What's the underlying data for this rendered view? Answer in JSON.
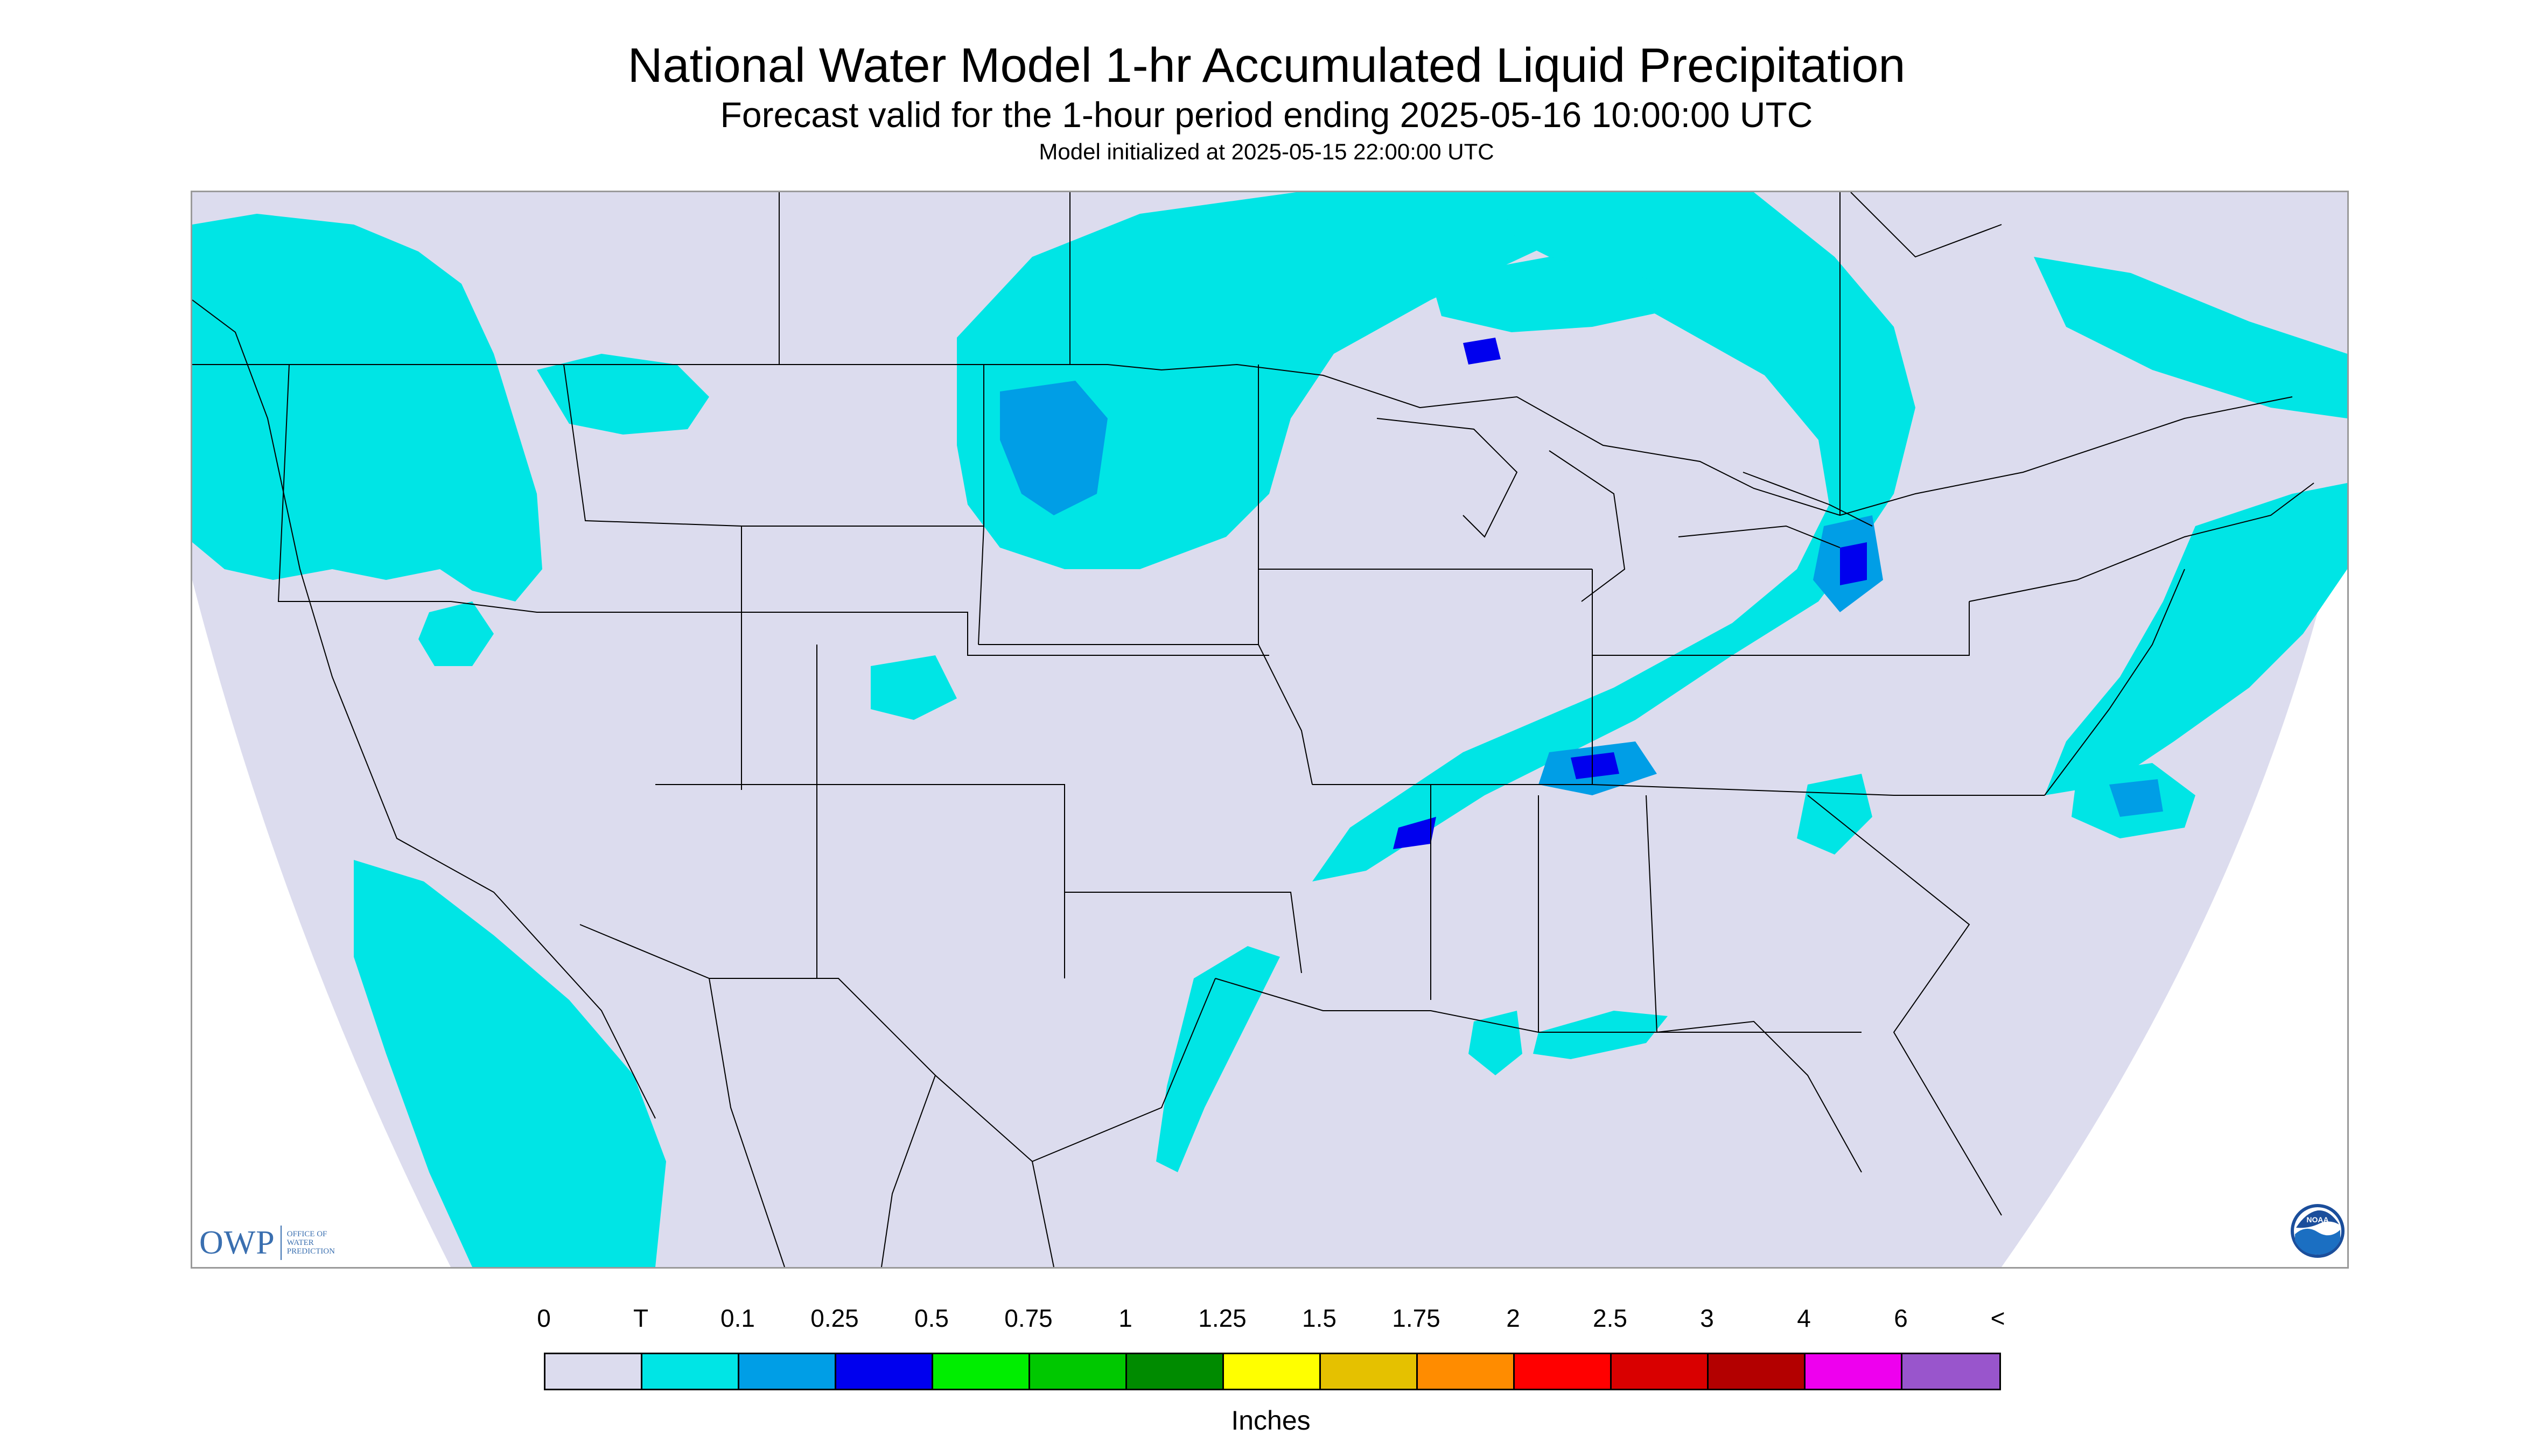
{
  "header": {
    "title": "National Water Model 1-hr Accumulated Liquid Precipitation",
    "subtitle": "Forecast valid for the 1-hour period ending 2025-05-16 10:00:00 UTC",
    "init": "Model initialized at 2025-05-15 22:00:00 UTC"
  },
  "map": {
    "background_color": "#dcdcee",
    "outside_color": "#ffffff",
    "light_precip_color": "#00e5e5",
    "moderate_precip_color": "#009ee6",
    "heavy_precip_color": "#0000ee",
    "boundary_color": "#000000"
  },
  "logos": {
    "owp_mark": "OWP",
    "owp_text": [
      "OFFICE OF",
      "WATER",
      "PREDICTION"
    ],
    "noaa_text": "NOAA",
    "owp_icon": "owp-logo-icon",
    "noaa_icon": "noaa-logo-icon"
  },
  "legend": {
    "labels": [
      "0",
      "T",
      "0.1",
      "0.25",
      "0.5",
      "0.75",
      "1",
      "1.25",
      "1.5",
      "1.75",
      "2",
      "2.5",
      "3",
      "4",
      "6",
      "<"
    ],
    "colors": [
      "#dcdcee",
      "#00e5e5",
      "#009ee6",
      "#0000ee",
      "#00ee00",
      "#00c800",
      "#008b00",
      "#ffff00",
      "#e5c100",
      "#ff8c00",
      "#ff0000",
      "#d90000",
      "#b30000",
      "#ee00ee",
      "#9955cc"
    ],
    "units": "Inches"
  }
}
